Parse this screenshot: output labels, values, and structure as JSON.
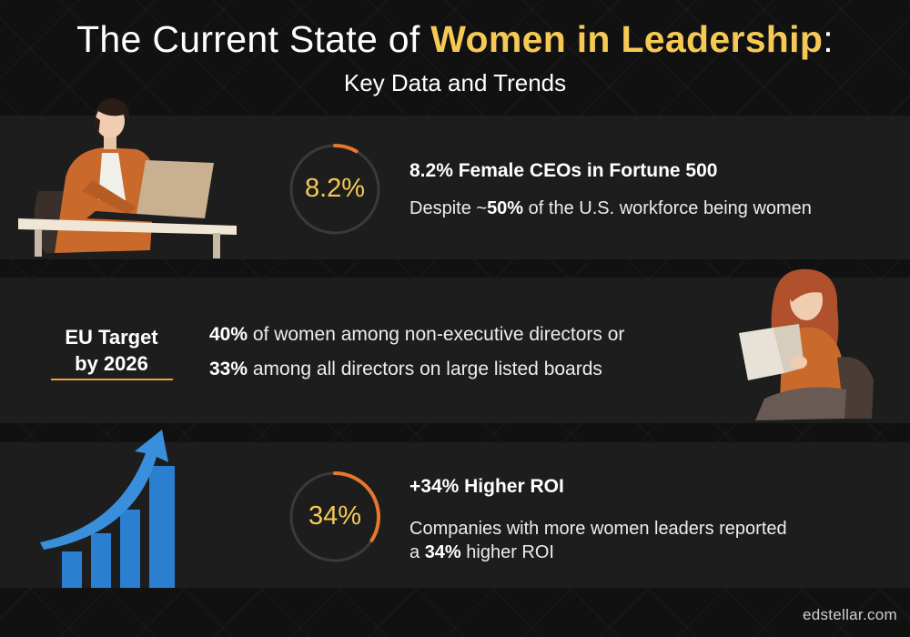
{
  "header": {
    "title_prefix": "The Current State of ",
    "title_highlight": "Women in Leadership",
    "title_suffix": ":",
    "subtitle": "Key Data and Trends"
  },
  "stat1": {
    "ring_value": "8.2%",
    "ring_fraction": 0.082,
    "title": "8.2% Female CEOs in Fortune 500",
    "desc_prefix": "Despite ~",
    "desc_bold": "50%",
    "desc_suffix": " of the U.S. workforce being women"
  },
  "eu": {
    "label_line1": "EU Target",
    "label_line2": "by 2026",
    "line1_bold": "40%",
    "line1_rest": " of women among non-executive directors or",
    "line2_bold": "33%",
    "line2_rest": " among all directors on large listed boards"
  },
  "stat3": {
    "ring_value": "34%",
    "ring_fraction": 0.34,
    "title": "+34% Higher ROI",
    "desc_line1": "Companies with more women leaders reported",
    "desc_line2_prefix": "a ",
    "desc_line2_bold": "34%",
    "desc_line2_suffix": " higher ROI"
  },
  "footer": {
    "brand": "edstellar.com"
  },
  "colors": {
    "accent_yellow": "#f6c955",
    "ring_orange": "#e8772e",
    "ring_track": "#3a3a3a",
    "chart_blue": "#2a7fd0"
  }
}
